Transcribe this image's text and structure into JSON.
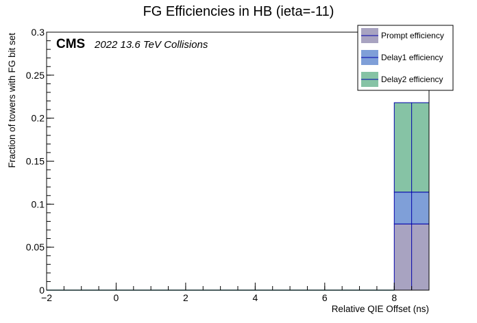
{
  "chart_data": {
    "type": "bar",
    "stacked": true,
    "title": "FG Efficiencies in HB (ieta=-11)",
    "xlabel": "Relative QIE Offset (ns)",
    "ylabel": "Fraction of towers with FG bit set",
    "xlim": [
      -2,
      9
    ],
    "ylim": [
      0,
      0.3
    ],
    "x_ticks": [
      -2,
      0,
      2,
      4,
      6,
      8
    ],
    "x_tick_labels": [
      "−2",
      "0",
      "2",
      "4",
      "6",
      "8"
    ],
    "y_ticks": [
      0,
      0.05,
      0.1,
      0.15,
      0.2,
      0.25,
      0.3
    ],
    "y_tick_labels": [
      "0",
      "0.05",
      "0.1",
      "0.15",
      "0.2",
      "0.25",
      "0.3"
    ],
    "grid": false,
    "legend_position": "top-right",
    "bin_width": 1,
    "bins": [
      -2,
      -1,
      0,
      1,
      2,
      3,
      4,
      5,
      6,
      7,
      8
    ],
    "series": [
      {
        "name": "Prompt efficiency",
        "color": "#a8a3c1",
        "values": [
          0,
          0,
          0,
          0,
          0,
          0,
          0,
          0,
          0,
          0,
          0.077
        ]
      },
      {
        "name": "Delay1 efficiency",
        "color": "#7f9fd8",
        "values": [
          0,
          0,
          0,
          0,
          0,
          0,
          0,
          0,
          0,
          0,
          0.037
        ]
      },
      {
        "name": "Delay2 efficiency",
        "color": "#86c3a5",
        "values": [
          0,
          0,
          0,
          0,
          0,
          0,
          0,
          0,
          0,
          0,
          0.104
        ]
      }
    ],
    "error_color": "#0000aa"
  },
  "annotation": {
    "experiment": "CMS",
    "detail": "2022 13.6 TeV Collisions"
  }
}
